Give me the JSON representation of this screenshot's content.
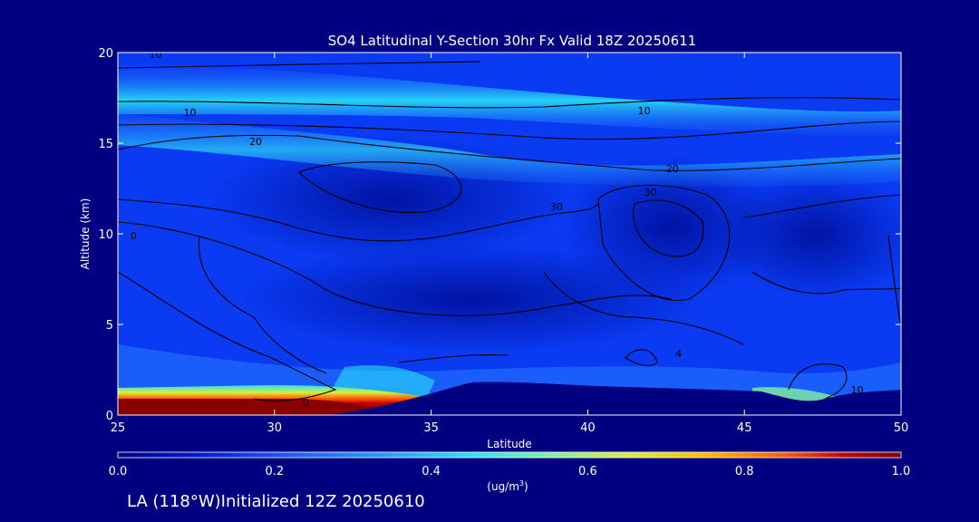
{
  "chart_data": {
    "type": "heatmap",
    "title": "SO4 Latitudinal Y-Section 30hr  Fx Valid 18Z 20250611",
    "xlabel": "Latitude",
    "ylabel": "Altitude (km)",
    "xlim": [
      25,
      50
    ],
    "ylim": [
      0,
      20
    ],
    "x_ticks": [
      25,
      30,
      35,
      40,
      45,
      50
    ],
    "y_ticks": [
      0,
      5,
      10,
      15,
      20
    ],
    "colorbar": {
      "ticks": [
        "0.0",
        "0.2",
        "0.4",
        "0.6",
        "0.8",
        "1.0"
      ],
      "range": [
        0,
        1
      ],
      "units_main": "(ug/m",
      "units_sup": "3",
      "units_end": ")",
      "colors": [
        "#000080",
        "#0018d8",
        "#1f4fff",
        "#2aa0ff",
        "#27e3f5",
        "#7ff0a0",
        "#d8ee3a",
        "#ffbe00",
        "#ff5a00",
        "#c40000",
        "#800000"
      ]
    },
    "contour_labels": [
      {
        "text": "10",
        "lat": 26.2,
        "alt": 19.7
      },
      {
        "text": "10",
        "lat": 27.3,
        "alt": 16.5
      },
      {
        "text": "10",
        "lat": 41.8,
        "alt": 16.6
      },
      {
        "text": "20",
        "lat": 29.4,
        "alt": 14.9
      },
      {
        "text": "20",
        "lat": 42.7,
        "alt": 13.4
      },
      {
        "text": "30",
        "lat": 39.0,
        "alt": 11.3
      },
      {
        "text": "30",
        "lat": 42.0,
        "alt": 12.1
      },
      {
        "text": "0",
        "lat": 25.5,
        "alt": 9.7
      },
      {
        "text": "0",
        "lat": 31.0,
        "alt": 0.5
      },
      {
        "text": "10",
        "lat": 48.6,
        "alt": 1.2
      },
      {
        "text": "4",
        "lat": 42.9,
        "alt": 3.2
      }
    ]
  },
  "footer": {
    "location": "LA (118",
    "degree": "°",
    "location_rest": "W)Initialized 12Z 20250610"
  }
}
